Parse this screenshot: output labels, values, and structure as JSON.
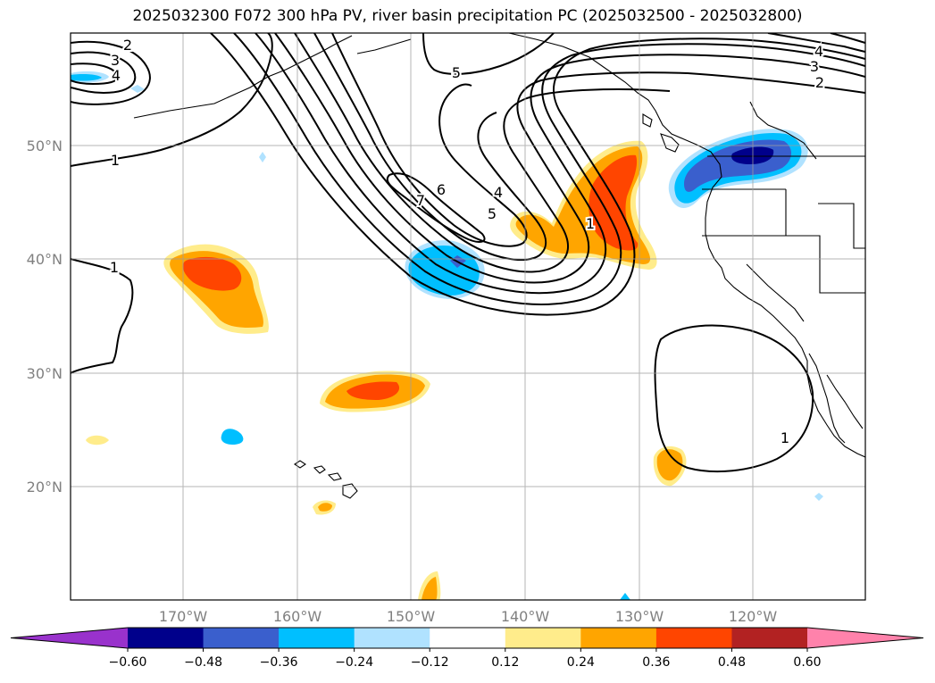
{
  "title": "2025032300 F072 300 hPa PV, river basin precipitation PC (2025032500 - 2025032800)",
  "map": {
    "lat_ticks": [
      "50°N",
      "40°N",
      "30°N",
      "20°N"
    ],
    "lon_ticks": [
      "170°W",
      "160°W",
      "150°W",
      "140°W",
      "130°W",
      "120°W"
    ],
    "contour_labels": [
      "2",
      "3",
      "4",
      "5",
      "1",
      "1",
      "7",
      "6",
      "4",
      "5",
      "1",
      "4",
      "3",
      "2",
      "1"
    ]
  },
  "colorbar": {
    "ticks": [
      "−0.60",
      "−0.48",
      "−0.36",
      "−0.24",
      "−0.12",
      "0.12",
      "0.24",
      "0.36",
      "0.48",
      "0.60"
    ],
    "colors": [
      "#9932cc",
      "#00008b",
      "#3a5fcd",
      "#00bfff",
      "#b0e2ff",
      "#ffffff",
      "#ffec8b",
      "#ffa500",
      "#ff4500",
      "#b22222",
      "#ff82ab"
    ]
  }
}
